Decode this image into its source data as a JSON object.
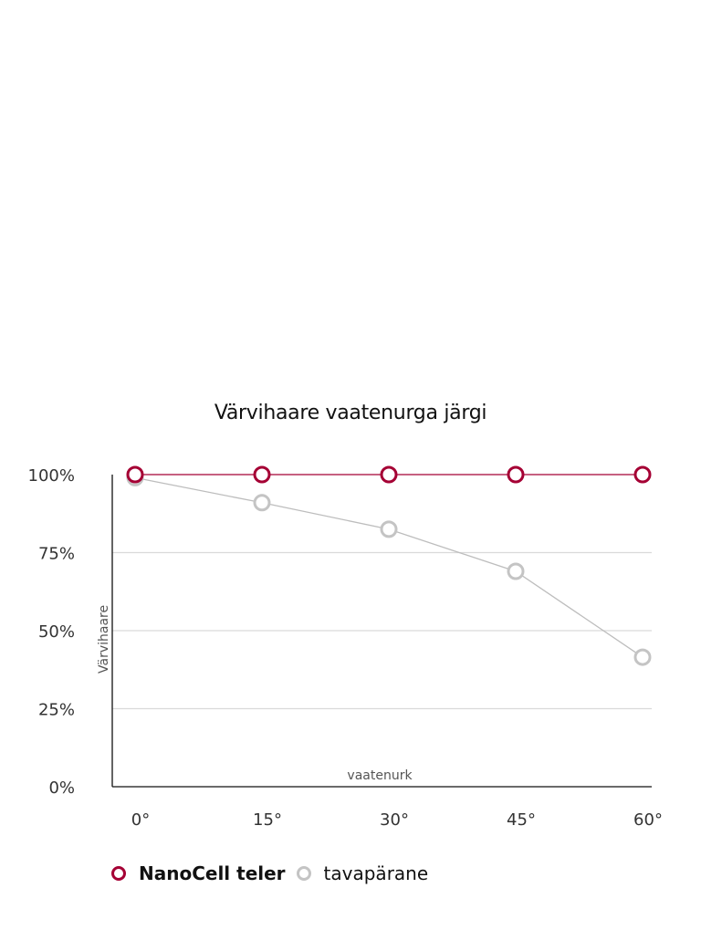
{
  "chart_data": {
    "type": "line",
    "title": "Värvihaare vaatenurga järgi",
    "xlabel": "vaatenurk",
    "ylabel": "Värvihaare",
    "categories": [
      "0°",
      "15°",
      "30°",
      "45°",
      "60°"
    ],
    "yticks": [
      "0%",
      "25%",
      "50%",
      "75%",
      "100%"
    ],
    "ylim": [
      0,
      100
    ],
    "grid": true,
    "legend_position": "bottom-left",
    "series": [
      {
        "name": "NanoCell teler",
        "color": "#a50034",
        "values": [
          100,
          100,
          100,
          100,
          100
        ]
      },
      {
        "name": "tavapärane",
        "color": "#bdbdbd",
        "values": [
          99,
          91,
          82.5,
          69,
          41.5
        ]
      }
    ]
  },
  "legend": {
    "items": [
      {
        "label": "NanoCell teler",
        "color": "#a50034"
      },
      {
        "label": "tavapärane",
        "color": "#c4c4c4"
      }
    ]
  }
}
